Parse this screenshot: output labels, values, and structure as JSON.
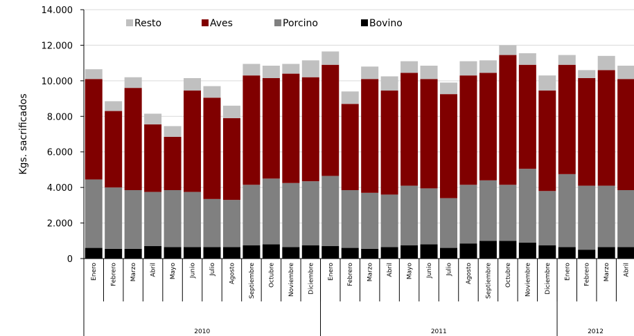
{
  "chart_data": {
    "type": "bar",
    "stacked": true,
    "ylabel": "Kgs. sacrificados",
    "ylim": [
      0,
      14000
    ],
    "y_ticks": [
      "0",
      "2.000",
      "4.000",
      "6.000",
      "8.000",
      "10.000",
      "12.000",
      "14.000"
    ],
    "categories": [
      "Enero",
      "Febrero",
      "Marzo",
      "Abril",
      "Mayo",
      "Junio",
      "Julio",
      "Agosto",
      "Septiembre",
      "Octubre",
      "Noviembre",
      "Diciembre",
      "Enero",
      "Febrero",
      "Marzo",
      "Abril",
      "Mayo",
      "Junio",
      "Julio",
      "Agosto",
      "Septiembre",
      "Octubre",
      "Noviembre",
      "Diciembre",
      "Enero",
      "Febrero",
      "Marzo",
      "Abril"
    ],
    "years": [
      {
        "label": "2010",
        "count": 12
      },
      {
        "label": "2011",
        "count": 12
      },
      {
        "label": "2012",
        "count": 4
      }
    ],
    "legend": [
      "Resto",
      "Aves",
      "Porcino",
      "Bovino"
    ],
    "series": [
      {
        "name": "Bovino",
        "color": "#000000",
        "values": [
          600,
          550,
          550,
          700,
          650,
          650,
          650,
          650,
          750,
          800,
          650,
          750,
          700,
          600,
          550,
          650,
          750,
          800,
          600,
          850,
          1000,
          1000,
          900,
          750,
          650,
          500,
          650,
          650
        ]
      },
      {
        "name": "Porcino",
        "color": "#808080",
        "values": [
          3850,
          3450,
          3300,
          3050,
          3200,
          3100,
          2700,
          2650,
          3400,
          3700,
          3600,
          3600,
          3950,
          3250,
          3150,
          2950,
          3350,
          3150,
          2800,
          3300,
          3400,
          3150,
          4150,
          3050,
          4100,
          3600,
          3450,
          3200
        ]
      },
      {
        "name": "Aves",
        "color": "#800000",
        "values": [
          5650,
          4300,
          5750,
          3800,
          3000,
          5700,
          5700,
          4600,
          6150,
          5650,
          6150,
          5850,
          6250,
          4850,
          6400,
          5850,
          6350,
          6150,
          5850,
          6150,
          6050,
          7300,
          5850,
          5650,
          6150,
          6050,
          6500,
          6250
        ]
      },
      {
        "name": "Resto",
        "color": "#c0c0c0",
        "values": [
          550,
          550,
          600,
          600,
          600,
          700,
          650,
          700,
          650,
          700,
          550,
          950,
          750,
          700,
          700,
          800,
          650,
          750,
          650,
          800,
          700,
          550,
          650,
          850,
          550,
          450,
          800,
          750
        ]
      }
    ]
  }
}
